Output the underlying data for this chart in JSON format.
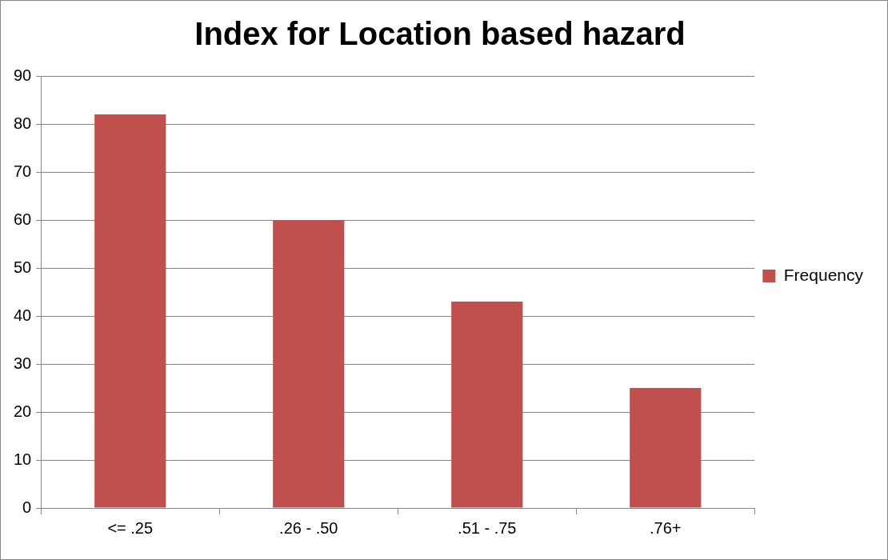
{
  "chart_data": {
    "type": "bar",
    "title": "Index for Location based hazard",
    "categories": [
      "<= .25",
      ".26 - .50",
      ".51 - .75",
      ".76+"
    ],
    "series": [
      {
        "name": "Frequency",
        "color": "#c0504d",
        "values": [
          82,
          60,
          43,
          25
        ]
      }
    ],
    "ylim": [
      0,
      90
    ],
    "yticks": [
      0,
      10,
      20,
      30,
      40,
      50,
      60,
      70,
      80,
      90
    ],
    "grid": "y",
    "legend": "right"
  }
}
